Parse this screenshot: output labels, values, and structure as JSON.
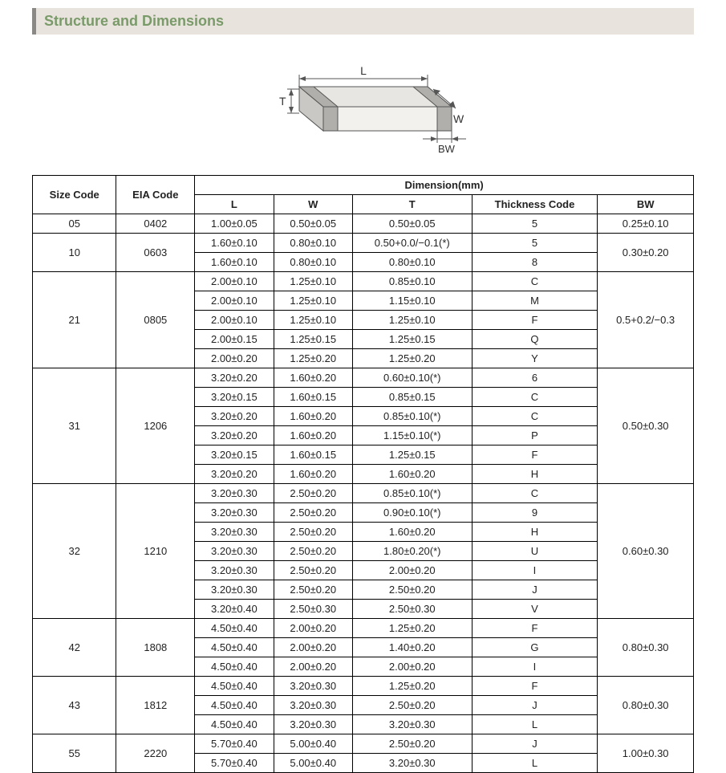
{
  "header": {
    "title": "Structure and Dimensions"
  },
  "diagram": {
    "labels": {
      "L": "L",
      "W": "W",
      "T": "T",
      "BW": "BW"
    },
    "stroke": "#555555",
    "fill_top": "#e7e6e3",
    "fill_side": "#c9c8c4",
    "fill_front": "#f2f1ee",
    "fill_band": "#b0afab"
  },
  "table": {
    "header": {
      "size_code": "Size Code",
      "eia_code": "EIA Code",
      "dimension": "Dimension(mm)",
      "L": "L",
      "W": "W",
      "T": "T",
      "thickness_code": "Thickness  Code",
      "BW": "BW"
    },
    "groups": [
      {
        "size": "05",
        "eia": "0402",
        "bw": "0.25±0.10",
        "rows": [
          {
            "L": "1.00±0.05",
            "W": "0.50±0.05",
            "T": "0.50±0.05",
            "TC": "5"
          }
        ]
      },
      {
        "size": "10",
        "eia": "0603",
        "bw": "0.30±0.20",
        "rows": [
          {
            "L": "1.60±0.10",
            "W": "0.80±0.10",
            "T": "0.50+0.0/−0.1(*)",
            "TC": "5"
          },
          {
            "L": "1.60±0.10",
            "W": "0.80±0.10",
            "T": "0.80±0.10",
            "TC": "8"
          }
        ]
      },
      {
        "size": "21",
        "eia": "0805",
        "bw": "0.5+0.2/−0.3",
        "rows": [
          {
            "L": "2.00±0.10",
            "W": "1.25±0.10",
            "T": "0.85±0.10",
            "TC": "C"
          },
          {
            "L": "2.00±0.10",
            "W": "1.25±0.10",
            "T": "1.15±0.10",
            "TC": "M"
          },
          {
            "L": "2.00±0.10",
            "W": "1.25±0.10",
            "T": "1.25±0.10",
            "TC": "F"
          },
          {
            "L": "2.00±0.15",
            "W": "1.25±0.15",
            "T": "1.25±0.15",
            "TC": "Q"
          },
          {
            "L": "2.00±0.20",
            "W": "1.25±0.20",
            "T": "1.25±0.20",
            "TC": "Y"
          }
        ]
      },
      {
        "size": "31",
        "eia": "1206",
        "bw": "0.50±0.30",
        "rows": [
          {
            "L": "3.20±0.20",
            "W": "1.60±0.20",
            "T": "0.60±0.10(*)",
            "TC": "6"
          },
          {
            "L": "3.20±0.15",
            "W": "1.60±0.15",
            "T": "0.85±0.15",
            "TC": "C"
          },
          {
            "L": "3.20±0.20",
            "W": "1.60±0.20",
            "T": "0.85±0.10(*)",
            "TC": "C"
          },
          {
            "L": "3.20±0.20",
            "W": "1.60±0.20",
            "T": "1.15±0.10(*)",
            "TC": "P"
          },
          {
            "L": "3.20±0.15",
            "W": "1.60±0.15",
            "T": "1.25±0.15",
            "TC": "F"
          },
          {
            "L": "3.20±0.20",
            "W": "1.60±0.20",
            "T": "1.60±0.20",
            "TC": "H"
          }
        ]
      },
      {
        "size": "32",
        "eia": "1210",
        "bw": "0.60±0.30",
        "rows": [
          {
            "L": "3.20±0.30",
            "W": "2.50±0.20",
            "T": "0.85±0.10(*)",
            "TC": "C"
          },
          {
            "L": "3.20±0.30",
            "W": "2.50±0.20",
            "T": "0.90±0.10(*)",
            "TC": "9"
          },
          {
            "L": "3.20±0.30",
            "W": "2.50±0.20",
            "T": "1.60±0.20",
            "TC": "H"
          },
          {
            "L": "3.20±0.30",
            "W": "2.50±0.20",
            "T": "1.80±0.20(*)",
            "TC": "U"
          },
          {
            "L": "3.20±0.30",
            "W": "2.50±0.20",
            "T": "2.00±0.20",
            "TC": "I"
          },
          {
            "L": "3.20±0.30",
            "W": "2.50±0.20",
            "T": "2.50±0.20",
            "TC": "J"
          },
          {
            "L": "3.20±0.40",
            "W": "2.50±0.30",
            "T": "2.50±0.30",
            "TC": "V"
          }
        ]
      },
      {
        "size": "42",
        "eia": "1808",
        "bw": "0.80±0.30",
        "rows": [
          {
            "L": "4.50±0.40",
            "W": "2.00±0.20",
            "T": "1.25±0.20",
            "TC": "F"
          },
          {
            "L": "4.50±0.40",
            "W": "2.00±0.20",
            "T": "1.40±0.20",
            "TC": "G"
          },
          {
            "L": "4.50±0.40",
            "W": "2.00±0.20",
            "T": "2.00±0.20",
            "TC": "I"
          }
        ]
      },
      {
        "size": "43",
        "eia": "1812",
        "bw": "0.80±0.30",
        "rows": [
          {
            "L": "4.50±0.40",
            "W": "3.20±0.30",
            "T": "1.25±0.20",
            "TC": "F"
          },
          {
            "L": "4.50±0.40",
            "W": "3.20±0.30",
            "T": "2.50±0.20",
            "TC": "J"
          },
          {
            "L": "4.50±0.40",
            "W": "3.20±0.30",
            "T": "3.20±0.30",
            "TC": "L"
          }
        ]
      },
      {
        "size": "55",
        "eia": "2220",
        "bw": "1.00±0.30",
        "rows": [
          {
            "L": "5.70±0.40",
            "W": "5.00±0.40",
            "T": "2.50±0.20",
            "TC": "J"
          },
          {
            "L": "5.70±0.40",
            "W": "5.00±0.40",
            "T": "3.20±0.30",
            "TC": "L"
          }
        ]
      }
    ]
  }
}
